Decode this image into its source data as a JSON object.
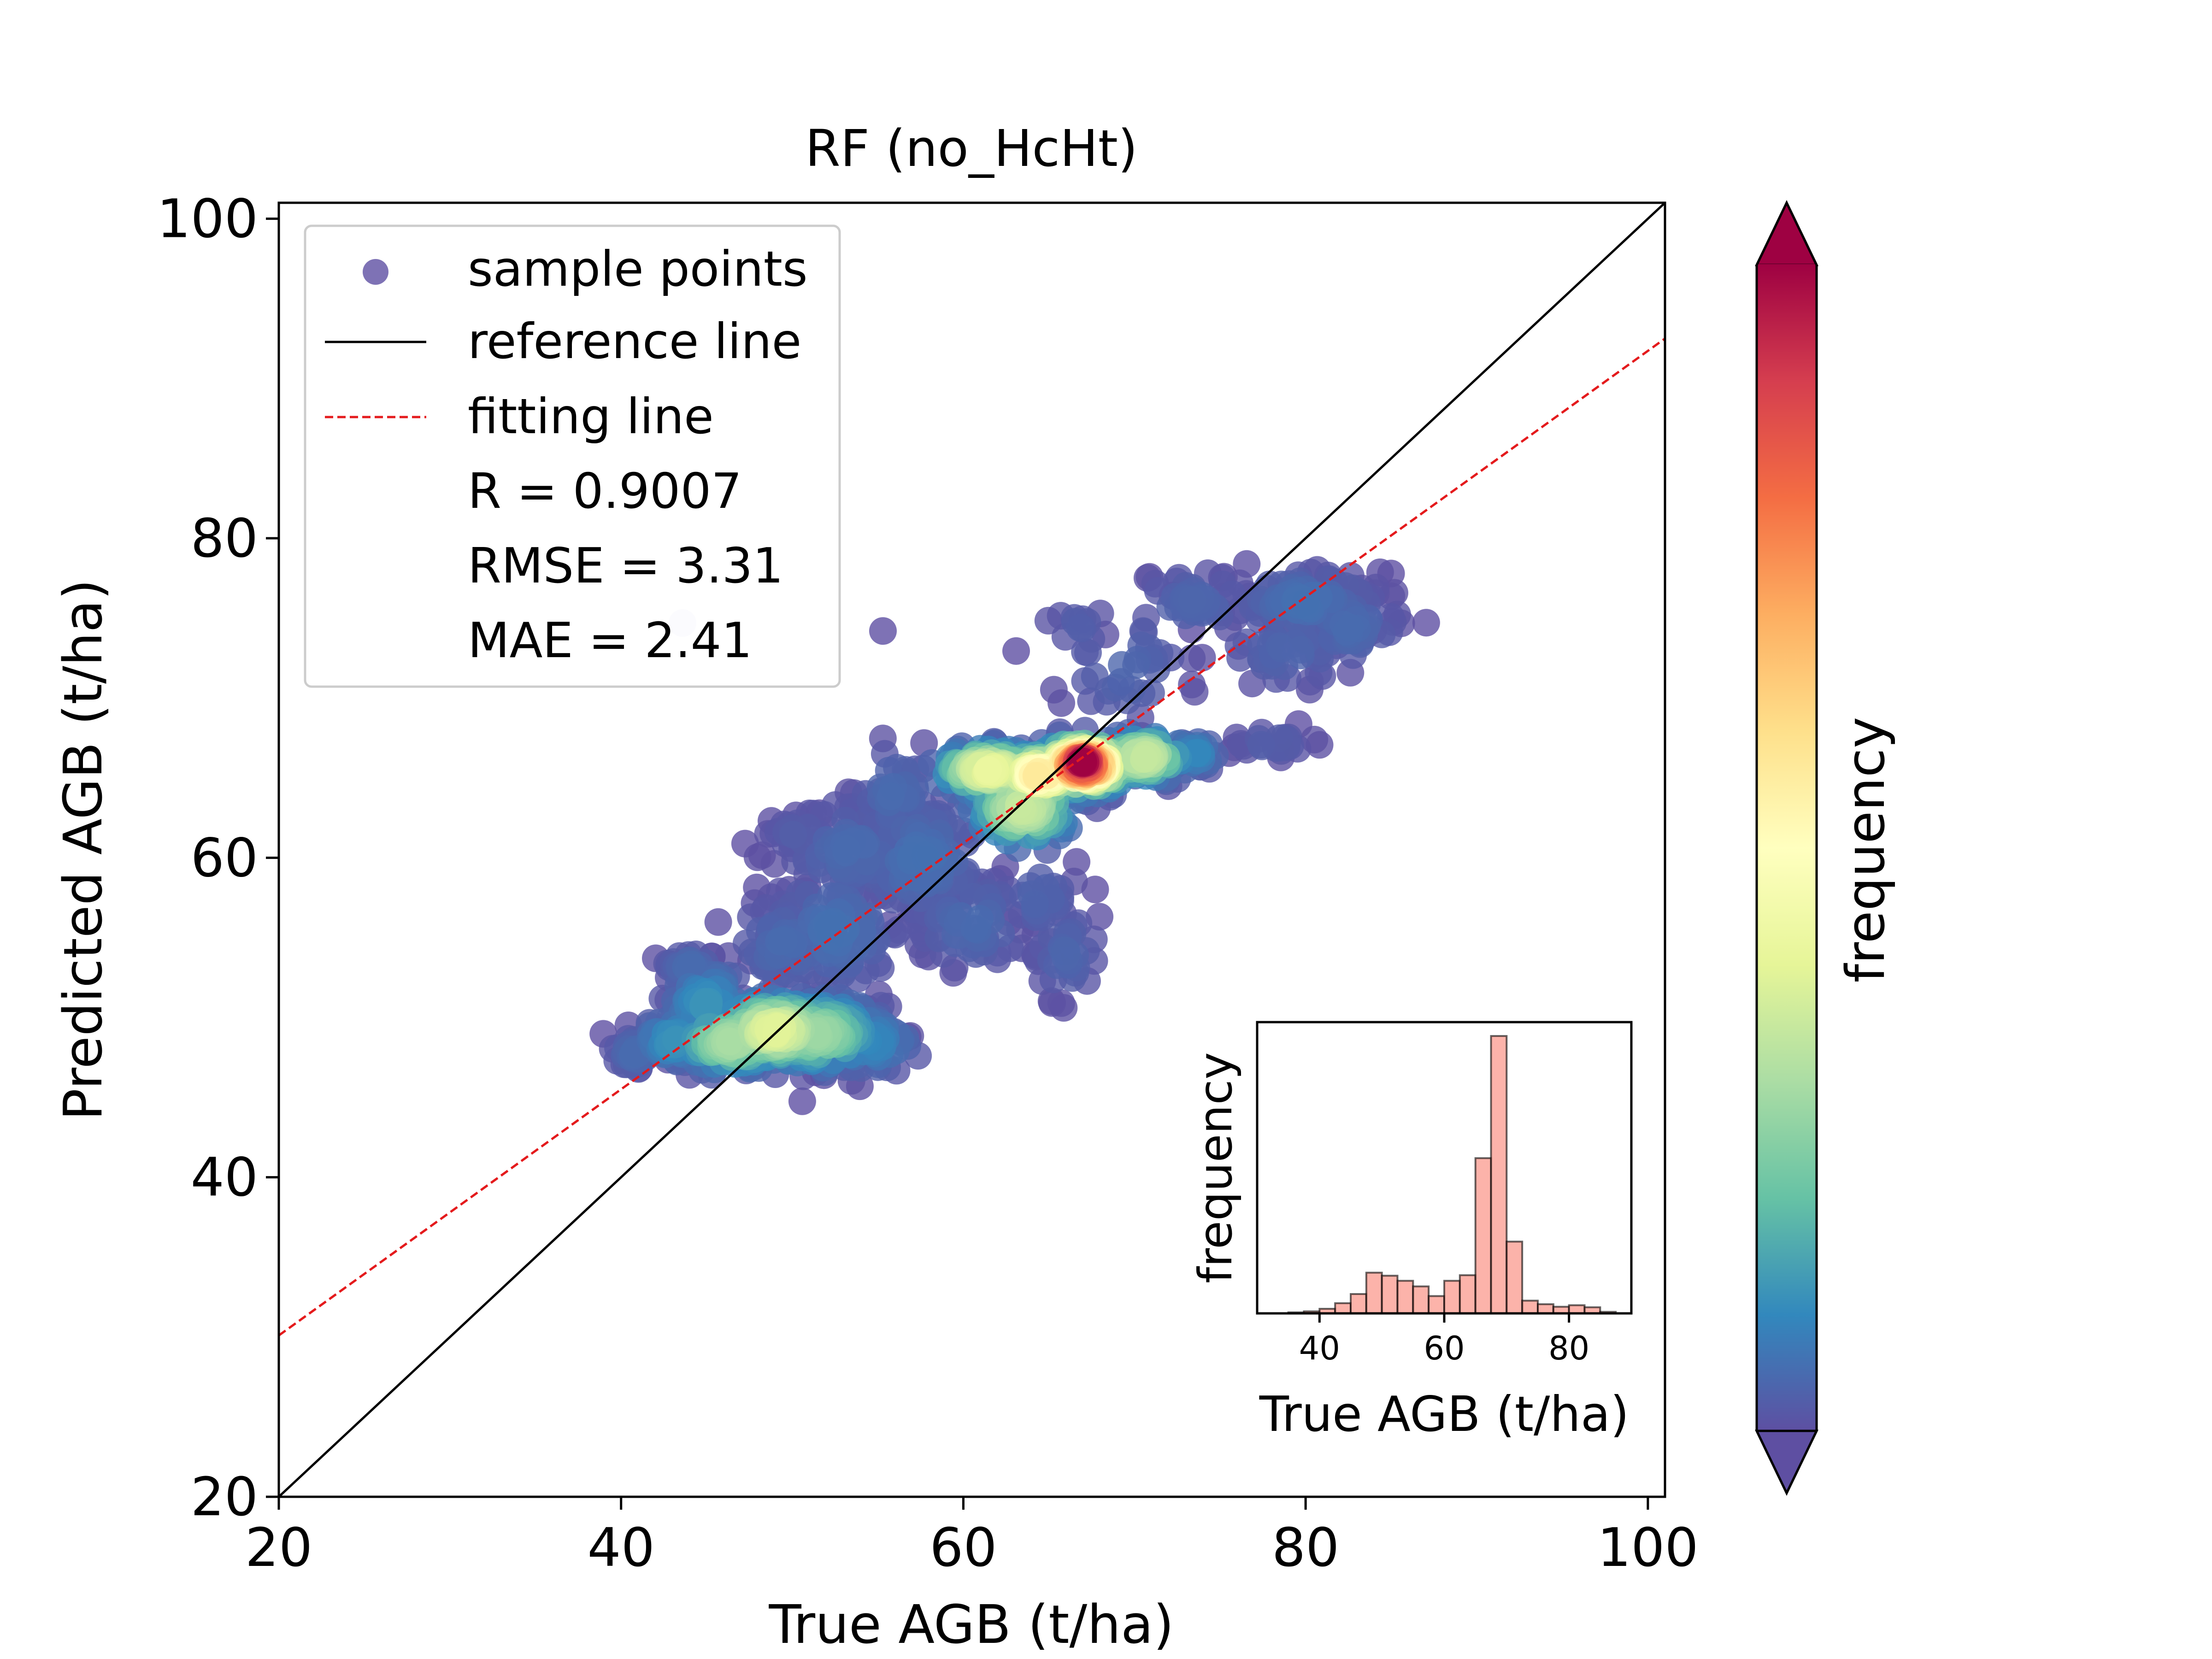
{
  "chart_data": [
    {
      "type": "scatter",
      "title": "RF (no_HcHt)",
      "xlabel": "True AGB (t/ha)",
      "ylabel": "Predicted AGB (t/ha)",
      "xlim": [
        20,
        101
      ],
      "ylim": [
        20,
        101
      ],
      "xticks": [
        20,
        40,
        60,
        80,
        100
      ],
      "yticks": [
        20,
        40,
        60,
        80,
        100
      ],
      "grid": false,
      "legend_position": "upper-left",
      "legend": [
        {
          "label": "sample points",
          "kind": "marker",
          "color": "#5e4fa2"
        },
        {
          "label": "reference line",
          "kind": "line",
          "color": "#000000"
        },
        {
          "label": "fitting line",
          "kind": "dashed-line",
          "color": "#e41a1c"
        }
      ],
      "stats": [
        "R = 0.9007",
        "RMSE = 3.31",
        "MAE = 2.41"
      ],
      "reference_line": {
        "slope": 1,
        "intercept": 0
      },
      "fitting_line": {
        "points": [
          [
            20,
            30.1
          ],
          [
            101,
            92.5
          ]
        ]
      },
      "colormap": "Spectral_r",
      "clusters": [
        {
          "cx": 40.8,
          "cy": 47.8,
          "sx": 0.7,
          "sy": 0.6,
          "n": 40,
          "d": 0.05
        },
        {
          "cx": 43.0,
          "cy": 48.6,
          "sx": 1.0,
          "sy": 0.8,
          "n": 60,
          "d": 0.12
        },
        {
          "cx": 45.0,
          "cy": 50.8,
          "sx": 1.2,
          "sy": 1.3,
          "n": 70,
          "d": 0.12
        },
        {
          "cx": 44.0,
          "cy": 53.2,
          "sx": 0.8,
          "sy": 0.5,
          "n": 30,
          "d": 0.05
        },
        {
          "cx": 46.5,
          "cy": 48.5,
          "sx": 1.6,
          "sy": 0.9,
          "n": 150,
          "d": 0.3
        },
        {
          "cx": 49.0,
          "cy": 49.2,
          "sx": 1.8,
          "sy": 1.0,
          "n": 200,
          "d": 0.4
        },
        {
          "cx": 51.5,
          "cy": 49.0,
          "sx": 1.8,
          "sy": 1.1,
          "n": 160,
          "d": 0.28
        },
        {
          "cx": 54.5,
          "cy": 48.5,
          "sx": 1.5,
          "sy": 1.0,
          "n": 70,
          "d": 0.1
        },
        {
          "cx": 49.5,
          "cy": 54.5,
          "sx": 1.5,
          "sy": 1.5,
          "n": 60,
          "d": 0.05
        },
        {
          "cx": 52.5,
          "cy": 55.5,
          "sx": 2.0,
          "sy": 2.0,
          "n": 90,
          "d": 0.06
        },
        {
          "cx": 53.5,
          "cy": 60.5,
          "sx": 2.0,
          "sy": 1.6,
          "n": 80,
          "d": 0.05
        },
        {
          "cx": 57.5,
          "cy": 60.0,
          "sx": 2.0,
          "sy": 2.0,
          "n": 90,
          "d": 0.06
        },
        {
          "cx": 60.5,
          "cy": 56.0,
          "sx": 1.8,
          "sy": 1.5,
          "n": 60,
          "d": 0.05
        },
        {
          "cx": 56.0,
          "cy": 64.0,
          "sx": 1.2,
          "sy": 1.6,
          "n": 40,
          "d": 0.05
        },
        {
          "cx": 66.0,
          "cy": 54.0,
          "sx": 1.0,
          "sy": 1.5,
          "n": 40,
          "d": 0.04
        },
        {
          "cx": 64.5,
          "cy": 57.5,
          "sx": 1.0,
          "sy": 1.2,
          "n": 30,
          "d": 0.04
        },
        {
          "cx": 50.5,
          "cy": 61.5,
          "sx": 1.0,
          "sy": 0.5,
          "n": 20,
          "d": 0.03
        },
        {
          "cx": 61.5,
          "cy": 65.5,
          "sx": 1.5,
          "sy": 0.7,
          "n": 150,
          "d": 0.42
        },
        {
          "cx": 63.5,
          "cy": 63.2,
          "sx": 1.5,
          "sy": 1.2,
          "n": 120,
          "d": 0.35
        },
        {
          "cx": 64.5,
          "cy": 65.2,
          "sx": 1.2,
          "sy": 0.7,
          "n": 150,
          "d": 0.58
        },
        {
          "cx": 67.0,
          "cy": 65.8,
          "sx": 1.2,
          "sy": 0.75,
          "n": 260,
          "d": 0.88
        },
        {
          "cx": 67.0,
          "cy": 66.0,
          "sx": 0.7,
          "sy": 0.45,
          "n": 180,
          "d": 1.0
        },
        {
          "cx": 70.5,
          "cy": 66.3,
          "sx": 1.3,
          "sy": 0.7,
          "n": 100,
          "d": 0.35
        },
        {
          "cx": 73.5,
          "cy": 66.5,
          "sx": 0.8,
          "sy": 0.5,
          "n": 30,
          "d": 0.1
        },
        {
          "cx": 78.0,
          "cy": 67.2,
          "sx": 1.2,
          "sy": 0.4,
          "n": 25,
          "d": 0.03
        },
        {
          "cx": 69.5,
          "cy": 72.0,
          "sx": 2.0,
          "sy": 2.0,
          "n": 40,
          "d": 0.04
        },
        {
          "cx": 73.5,
          "cy": 76.0,
          "sx": 1.8,
          "sy": 1.0,
          "n": 40,
          "d": 0.04
        },
        {
          "cx": 80.0,
          "cy": 76.0,
          "sx": 2.2,
          "sy": 1.0,
          "n": 90,
          "d": 0.06
        },
        {
          "cx": 82.5,
          "cy": 74.5,
          "sx": 1.5,
          "sy": 1.2,
          "n": 50,
          "d": 0.05
        },
        {
          "cx": 79.0,
          "cy": 73.0,
          "sx": 2.0,
          "sy": 1.2,
          "n": 40,
          "d": 0.04
        },
        {
          "cx": 66.5,
          "cy": 74.5,
          "sx": 1.0,
          "sy": 0.5,
          "n": 10,
          "d": 0.03
        },
        {
          "cx": 43.6,
          "cy": 74.7,
          "sx": 0.01,
          "sy": 0.01,
          "n": 1,
          "d": 0.0
        },
        {
          "cx": 55.3,
          "cy": 74.2,
          "sx": 0.01,
          "sy": 0.01,
          "n": 1,
          "d": 0.0
        },
        {
          "cx": 85.0,
          "cy": 77.8,
          "sx": 0.01,
          "sy": 0.01,
          "n": 1,
          "d": 0.0
        }
      ]
    },
    {
      "type": "histogram",
      "xlabel": "True AGB (t/ha)",
      "ylabel": "frequency",
      "xlim": [
        30,
        90
      ],
      "xticks": [
        40,
        60,
        80
      ],
      "color": "#fa8072",
      "bins": [
        {
          "x0": 35,
          "x1": 37.5,
          "value": 2
        },
        {
          "x0": 37.5,
          "x1": 40,
          "value": 4
        },
        {
          "x0": 40,
          "x1": 42.5,
          "value": 9
        },
        {
          "x0": 42.5,
          "x1": 45,
          "value": 20
        },
        {
          "x0": 45,
          "x1": 47.5,
          "value": 38
        },
        {
          "x0": 47.5,
          "x1": 50,
          "value": 80
        },
        {
          "x0": 50,
          "x1": 52.5,
          "value": 74
        },
        {
          "x0": 52.5,
          "x1": 55,
          "value": 64
        },
        {
          "x0": 55,
          "x1": 57.5,
          "value": 53
        },
        {
          "x0": 57.5,
          "x1": 60,
          "value": 34
        },
        {
          "x0": 60,
          "x1": 62.5,
          "value": 64
        },
        {
          "x0": 62.5,
          "x1": 65,
          "value": 75
        },
        {
          "x0": 65,
          "x1": 67.5,
          "value": 305
        },
        {
          "x0": 67.5,
          "x1": 70,
          "value": 545
        },
        {
          "x0": 70,
          "x1": 72.5,
          "value": 141
        },
        {
          "x0": 72.5,
          "x1": 75,
          "value": 25
        },
        {
          "x0": 75,
          "x1": 77.5,
          "value": 18
        },
        {
          "x0": 77.5,
          "x1": 80,
          "value": 13
        },
        {
          "x0": 80,
          "x1": 82.5,
          "value": 16
        },
        {
          "x0": 82.5,
          "x1": 85,
          "value": 12
        },
        {
          "x0": 85,
          "x1": 87.5,
          "value": 3
        }
      ]
    }
  ],
  "colorbar": {
    "label": "frequency",
    "colormap": "Spectral_r",
    "colors": [
      "#5e4fa2",
      "#3288bd",
      "#66c2a5",
      "#abdda4",
      "#e6f598",
      "#ffffbf",
      "#fee08b",
      "#fdae61",
      "#f46d43",
      "#d53e4f",
      "#9e0142"
    ]
  }
}
